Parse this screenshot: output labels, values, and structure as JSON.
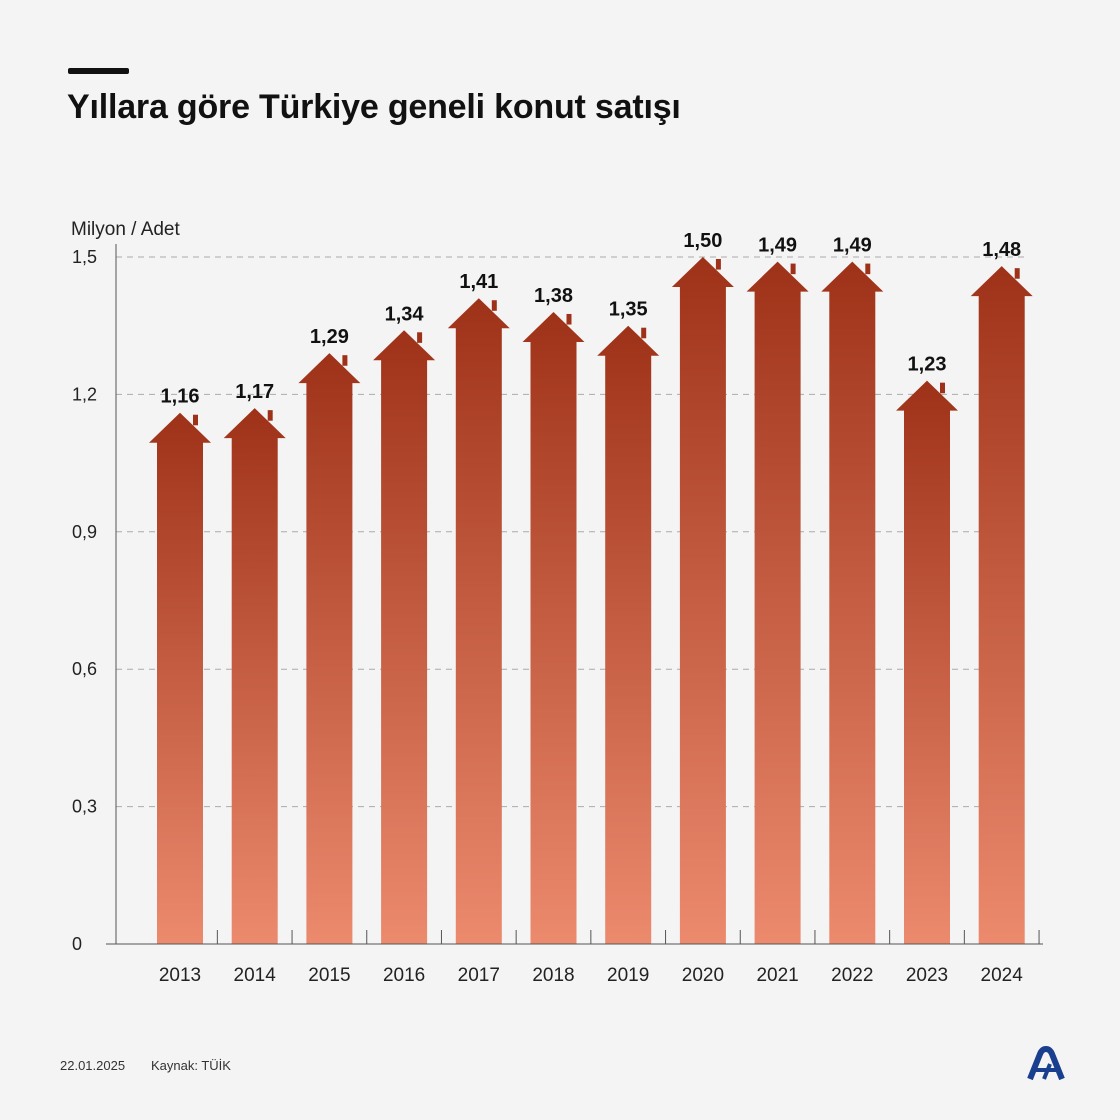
{
  "title": "Yıllara göre Türkiye geneli konut satışı",
  "unit_label": "Milyon / Adet",
  "footer": {
    "date": "22.01.2025",
    "source": "Kaynak: TÜİK"
  },
  "logo": {
    "icon": "aa-logo-icon",
    "color": "#1b3f8f"
  },
  "colors": {
    "bar_top": "#9e3218",
    "bar_bottom": "#ec8a6e",
    "grid": "#aaaaaa",
    "axis": "#555555"
  },
  "chart_data": {
    "type": "bar",
    "categories": [
      "2013",
      "2014",
      "2015",
      "2016",
      "2017",
      "2018",
      "2019",
      "2020",
      "2021",
      "2022",
      "2023",
      "2024"
    ],
    "values": [
      1.16,
      1.17,
      1.29,
      1.34,
      1.41,
      1.38,
      1.35,
      1.5,
      1.49,
      1.49,
      1.23,
      1.48
    ],
    "value_labels": [
      "1,16",
      "1,17",
      "1,29",
      "1,34",
      "1,41",
      "1,38",
      "1,35",
      "1,50",
      "1,49",
      "1,49",
      "1,23",
      "1,48"
    ],
    "title": "Yıllara göre Türkiye geneli konut satışı",
    "ylabel": "Milyon / Adet",
    "ylim": [
      0,
      1.5
    ],
    "yticks": [
      0,
      0.3,
      0.6,
      0.9,
      1.2,
      1.5
    ],
    "ytick_labels": [
      "0",
      "0,3",
      "0,6",
      "0,9",
      "1,2",
      "1,5"
    ],
    "grid": true,
    "legend": "none"
  }
}
